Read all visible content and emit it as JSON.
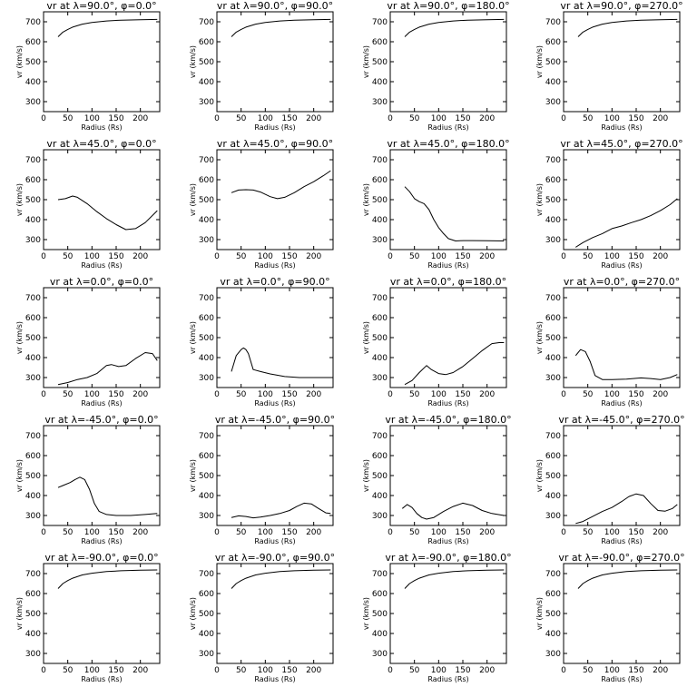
{
  "axes": {
    "xlabel": "Radius (Rs)",
    "ylabel": "vr (km/s)",
    "xlim": [
      0,
      240
    ],
    "ylim": [
      250,
      750
    ],
    "xticks": [
      0,
      50,
      100,
      150,
      200
    ],
    "yticks": [
      300,
      400,
      500,
      600,
      700
    ]
  },
  "chart_data": [
    {
      "type": "line",
      "title": "vr at λ=90.0°, φ=0.0°",
      "x": [
        30,
        40,
        50,
        60,
        80,
        100,
        130,
        160,
        200,
        235
      ],
      "values": [
        625,
        648,
        662,
        673,
        688,
        697,
        704,
        708,
        710,
        712
      ]
    },
    {
      "type": "line",
      "title": "vr at λ=90.0°, φ=90.0°",
      "x": [
        30,
        40,
        50,
        60,
        80,
        100,
        130,
        160,
        200,
        235
      ],
      "values": [
        625,
        648,
        662,
        673,
        688,
        697,
        704,
        708,
        710,
        712
      ]
    },
    {
      "type": "line",
      "title": "vr at λ=90.0°, φ=180.0°",
      "x": [
        30,
        40,
        50,
        60,
        80,
        100,
        130,
        160,
        200,
        235
      ],
      "values": [
        625,
        648,
        662,
        673,
        688,
        697,
        704,
        708,
        710,
        712
      ]
    },
    {
      "type": "line",
      "title": "vr at λ=90.0°, φ=270.0°",
      "x": [
        30,
        40,
        50,
        60,
        80,
        100,
        130,
        160,
        200,
        235
      ],
      "values": [
        625,
        648,
        662,
        673,
        688,
        697,
        704,
        708,
        710,
        712
      ]
    },
    {
      "type": "line",
      "title": "vr at λ=45.0°, φ=0.0°",
      "x": [
        30,
        45,
        60,
        70,
        90,
        110,
        130,
        150,
        170,
        190,
        210,
        235
      ],
      "values": [
        500,
        505,
        518,
        512,
        480,
        440,
        405,
        375,
        350,
        355,
        385,
        445
      ]
    },
    {
      "type": "line",
      "title": "vr at λ=45.0°, φ=90.0°",
      "x": [
        30,
        45,
        60,
        75,
        90,
        110,
        125,
        140,
        160,
        180,
        200,
        220,
        235
      ],
      "values": [
        535,
        548,
        550,
        548,
        538,
        515,
        505,
        512,
        535,
        565,
        590,
        620,
        645
      ]
    },
    {
      "type": "line",
      "title": "vr at λ=45.0°, φ=180.0°",
      "x": [
        30,
        40,
        50,
        60,
        70,
        80,
        90,
        100,
        110,
        120,
        135,
        150,
        170,
        200,
        235
      ],
      "values": [
        565,
        540,
        505,
        490,
        480,
        450,
        400,
        360,
        330,
        305,
        293,
        295,
        295,
        294,
        293
      ]
    },
    {
      "type": "line",
      "title": "vr at λ=45.0°, φ=270.0°",
      "x": [
        25,
        40,
        60,
        80,
        100,
        120,
        140,
        160,
        180,
        200,
        220,
        235
      ],
      "values": [
        262,
        285,
        310,
        330,
        355,
        368,
        385,
        400,
        420,
        445,
        475,
        505
      ]
    },
    {
      "type": "line",
      "title": "vr at λ=0.0°, φ=0.0°",
      "x": [
        30,
        50,
        70,
        90,
        110,
        130,
        140,
        155,
        170,
        190,
        210,
        225,
        235
      ],
      "values": [
        265,
        275,
        290,
        300,
        320,
        360,
        365,
        355,
        360,
        395,
        425,
        420,
        385
      ]
    },
    {
      "type": "line",
      "title": "vr at λ=0.0°, φ=90.0°",
      "x": [
        30,
        40,
        50,
        55,
        60,
        65,
        75,
        90,
        110,
        140,
        170,
        200,
        235
      ],
      "values": [
        330,
        410,
        440,
        448,
        440,
        420,
        340,
        330,
        318,
        305,
        300,
        300,
        300
      ]
    },
    {
      "type": "line",
      "title": "vr at λ=0.0°, φ=180.0°",
      "x": [
        30,
        45,
        60,
        75,
        85,
        100,
        115,
        130,
        150,
        170,
        190,
        210,
        225,
        235
      ],
      "values": [
        265,
        285,
        325,
        360,
        340,
        320,
        315,
        325,
        355,
        395,
        435,
        470,
        475,
        475
      ]
    },
    {
      "type": "line",
      "title": "vr at λ=0.0°, φ=270.0°",
      "x": [
        25,
        35,
        45,
        55,
        65,
        80,
        100,
        130,
        160,
        180,
        200,
        220,
        235
      ],
      "values": [
        410,
        440,
        430,
        380,
        310,
        290,
        290,
        292,
        298,
        295,
        290,
        300,
        315
      ]
    },
    {
      "type": "line",
      "title": "vr at λ=-45.0°, φ=0.0°",
      "x": [
        30,
        40,
        55,
        65,
        75,
        85,
        95,
        105,
        115,
        130,
        150,
        180,
        210,
        235
      ],
      "values": [
        440,
        450,
        465,
        480,
        492,
        480,
        430,
        360,
        320,
        305,
        300,
        300,
        305,
        310
      ]
    },
    {
      "type": "line",
      "title": "vr at λ=-45.0°, φ=90.0°",
      "x": [
        30,
        45,
        60,
        75,
        90,
        110,
        130,
        150,
        165,
        180,
        195,
        210,
        225,
        235
      ],
      "values": [
        290,
        298,
        295,
        288,
        292,
        300,
        310,
        325,
        345,
        362,
        358,
        335,
        313,
        310
      ]
    },
    {
      "type": "line",
      "title": "vr at λ=-45.0°, φ=180.0°",
      "x": [
        25,
        35,
        45,
        55,
        65,
        75,
        90,
        110,
        130,
        150,
        170,
        190,
        210,
        235
      ],
      "values": [
        335,
        355,
        340,
        310,
        290,
        282,
        290,
        320,
        345,
        362,
        350,
        325,
        310,
        300
      ]
    },
    {
      "type": "line",
      "title": "vr at λ=-45.0°, φ=270.0°",
      "x": [
        25,
        40,
        60,
        80,
        100,
        120,
        135,
        150,
        165,
        180,
        195,
        210,
        225,
        235
      ],
      "values": [
        260,
        270,
        295,
        320,
        340,
        370,
        395,
        408,
        400,
        360,
        325,
        322,
        335,
        355
      ]
    },
    {
      "type": "line",
      "title": "vr at λ=-90.0°, φ=0.0°",
      "x": [
        30,
        40,
        50,
        60,
        80,
        100,
        130,
        160,
        200,
        235
      ],
      "values": [
        625,
        650,
        665,
        677,
        693,
        702,
        710,
        714,
        717,
        718
      ]
    },
    {
      "type": "line",
      "title": "vr at λ=-90.0°, φ=90.0°",
      "x": [
        30,
        40,
        50,
        60,
        80,
        100,
        130,
        160,
        200,
        235
      ],
      "values": [
        625,
        650,
        665,
        677,
        693,
        702,
        710,
        714,
        717,
        718
      ]
    },
    {
      "type": "line",
      "title": "vr at λ=-90.0°, φ=180.0°",
      "x": [
        30,
        40,
        50,
        60,
        80,
        100,
        130,
        160,
        200,
        235
      ],
      "values": [
        625,
        650,
        665,
        677,
        693,
        702,
        710,
        714,
        717,
        718
      ]
    },
    {
      "type": "line",
      "title": "vr at λ=-90.0°, φ=270.0°",
      "x": [
        30,
        40,
        50,
        60,
        80,
        100,
        130,
        160,
        200,
        235
      ],
      "values": [
        625,
        650,
        665,
        677,
        693,
        702,
        710,
        714,
        717,
        718
      ]
    }
  ]
}
